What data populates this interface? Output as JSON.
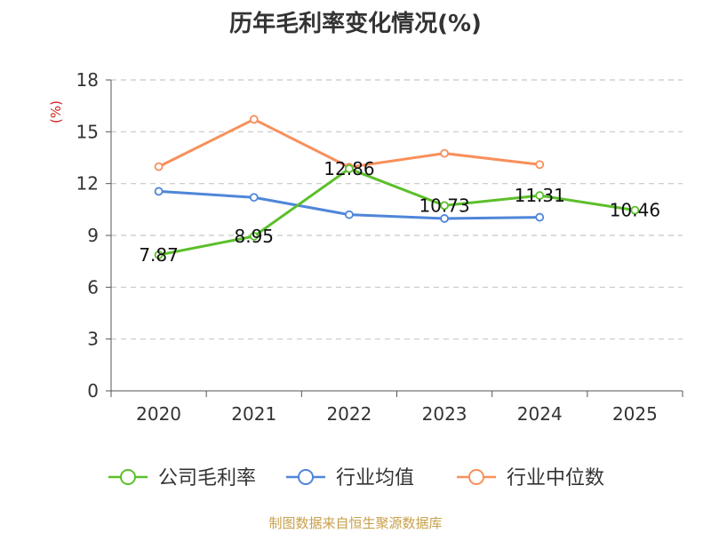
{
  "chart_data": {
    "type": "line",
    "title": "历年毛利率变化情况(%)",
    "ylabel": "(%)",
    "xlabel": "",
    "categories": [
      "2020",
      "2021",
      "2022",
      "2023",
      "2024",
      "2025"
    ],
    "ylim": [
      0,
      18
    ],
    "yticks": [
      0,
      3,
      6,
      9,
      12,
      15,
      18
    ],
    "grid": true,
    "legend": "bottom",
    "series": [
      {
        "name": "公司毛利率",
        "color": "#5cbf2a",
        "values": [
          7.87,
          8.95,
          12.86,
          10.73,
          11.31,
          10.46
        ],
        "labels": [
          "7.87",
          "8.95",
          "12.86",
          "10.73",
          "11.31",
          "10.46"
        ]
      },
      {
        "name": "行业均值",
        "color": "#4f86d9",
        "values": [
          11.55,
          11.2,
          10.2,
          9.98,
          10.05,
          null
        ],
        "labels": []
      },
      {
        "name": "行业中位数",
        "color": "#f98f5a",
        "values": [
          12.98,
          15.72,
          12.95,
          13.75,
          13.1,
          null
        ],
        "labels": []
      }
    ]
  },
  "source": "制图数据来自恒生聚源数据库"
}
